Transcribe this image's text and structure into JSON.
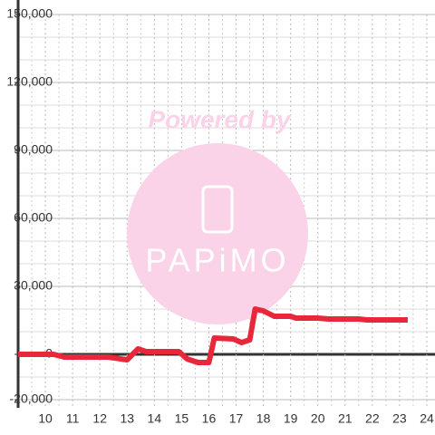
{
  "chart_data": {
    "type": "line",
    "x": [
      9.0,
      10.3,
      10.7,
      12.3,
      13.0,
      13.4,
      13.7,
      14.9,
      15.2,
      15.6,
      16.0,
      16.2,
      16.9,
      17.2,
      17.5,
      17.7,
      18.0,
      18.4,
      19.0,
      19.2,
      20.0,
      20.4,
      21.5,
      21.8,
      23.3
    ],
    "series": [
      {
        "name": null,
        "color": "#e8283a",
        "values": [
          0,
          0,
          -1200,
          -1200,
          -2400,
          2400,
          1200,
          1200,
          -2000,
          -3600,
          -3600,
          7200,
          6800,
          5200,
          6400,
          20000,
          19200,
          16800,
          16800,
          16000,
          16000,
          15600,
          15600,
          15200,
          15200
        ]
      }
    ],
    "xlim": [
      9,
      24.3
    ],
    "xticks": [
      10,
      11,
      12,
      13,
      14,
      15,
      16,
      17,
      18,
      19,
      20,
      21,
      22,
      23,
      24
    ],
    "xminorticks": [
      9.5,
      10.5,
      11.5,
      12.5,
      13.5,
      14.5,
      15.5,
      16.5,
      17.5,
      18.5,
      19.5,
      20.5,
      21.5,
      22.5,
      23.5
    ],
    "ylim": [
      -23600,
      150000
    ],
    "yticks": [
      {
        "value": -20000,
        "label": "-20,000"
      },
      0,
      {
        "value": 30000,
        "label": "30,000"
      },
      {
        "value": 60000,
        "label": "60,000"
      },
      {
        "value": 90000,
        "label": "90,000"
      },
      {
        "value": 120000,
        "label": "120,000"
      },
      {
        "value": 150000,
        "label": "150,000"
      }
    ],
    "yminorticks": [
      -10000,
      10000,
      20000,
      40000,
      50000,
      70000,
      80000,
      100000,
      110000,
      130000,
      140000
    ],
    "grid": true,
    "watermark": {
      "title": "Powered by",
      "logo": "PAPiMO"
    }
  }
}
